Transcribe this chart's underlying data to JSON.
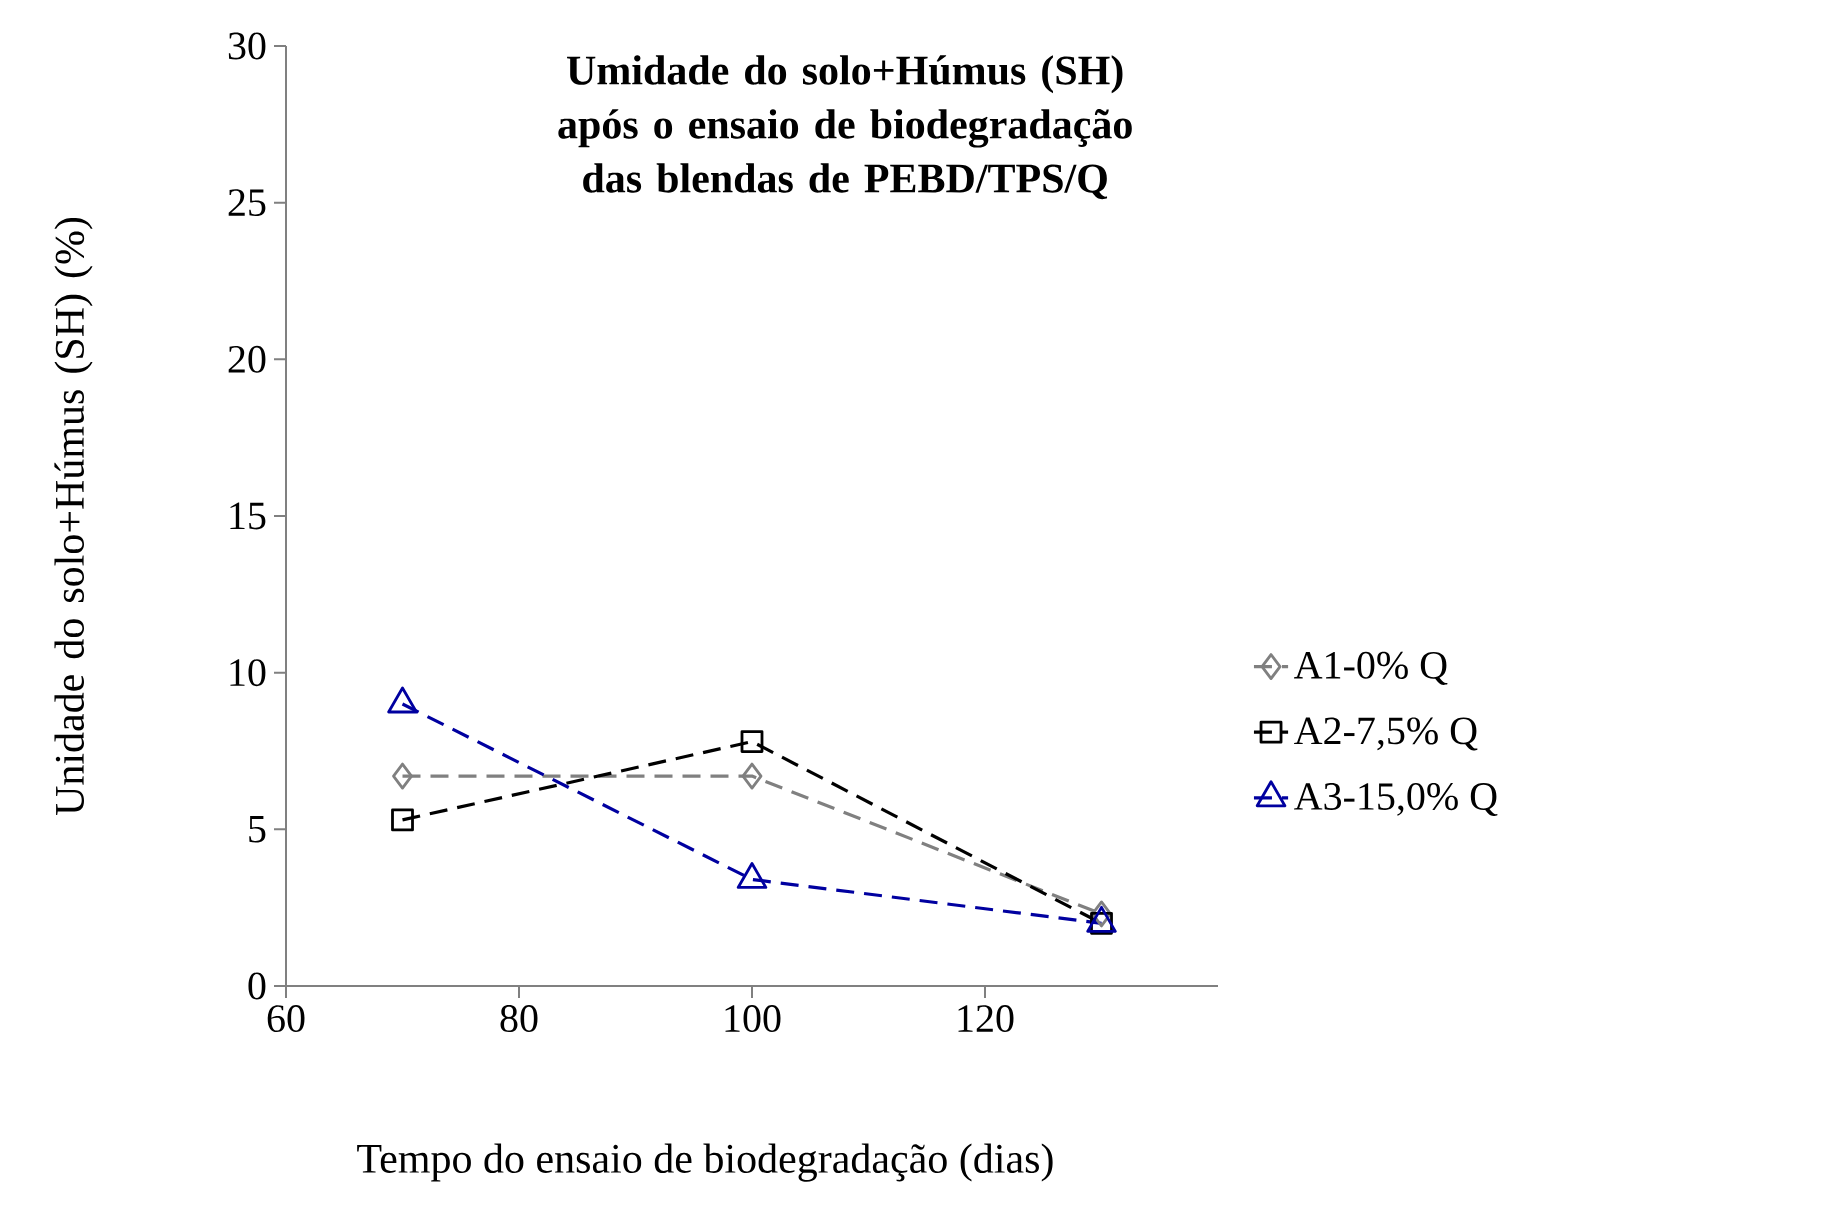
{
  "chart_data": {
    "type": "line",
    "title": "Umidade do solo+Húmus (SH) após o ensaio de biodegradação das blendas de PEBD/TPS/Q",
    "xlabel": "Tempo do ensaio de biodegradação (dias)",
    "ylabel": "Unidade do solo+Húmus (SH) (%)",
    "x": [
      70,
      100,
      130
    ],
    "series": [
      {
        "name": "A1-0% Q",
        "color": "#808080",
        "marker": "diamond",
        "values": [
          6.7,
          6.7,
          2.3
        ]
      },
      {
        "name": "A2-7,5% Q",
        "color": "#000000",
        "marker": "square",
        "values": [
          5.3,
          7.8,
          2.0
        ]
      },
      {
        "name": "A3-15,0% Q",
        "color": "#0000a0",
        "marker": "triangle",
        "values": [
          9.0,
          3.4,
          2.0
        ]
      }
    ],
    "xlim": [
      60,
      140
    ],
    "xticks": [
      60,
      80,
      100,
      120
    ],
    "ylim": [
      0,
      30
    ],
    "yticks": [
      0,
      5,
      10,
      15,
      20,
      25,
      30
    ],
    "grid": false,
    "legend": "right",
    "line_style": "dashed"
  }
}
